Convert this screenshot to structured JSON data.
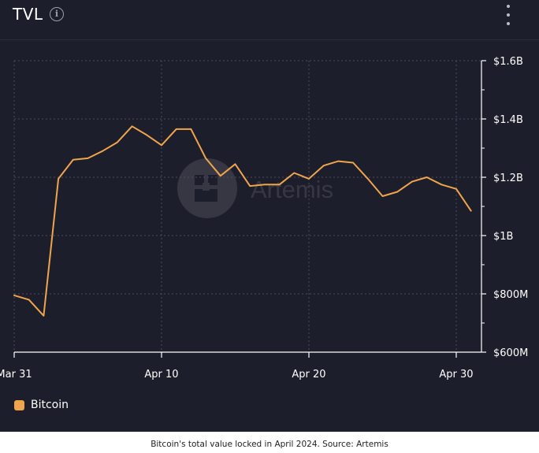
{
  "header": {
    "title": "TVL",
    "info_icon": "info-icon",
    "menu_icon": "vertical-ellipsis-icon"
  },
  "watermark": {
    "text": "Artemis"
  },
  "legend": {
    "label": "Bitcoin"
  },
  "caption": "Bitcoin's total value locked in April 2024. Source: Artemis",
  "colors": {
    "background": "#1d1e2b",
    "series": "#f0a44b",
    "grid": "#4a4c5c",
    "text": "#ffffff"
  },
  "chart_data": {
    "type": "line",
    "title": "TVL",
    "xlabel": "",
    "ylabel": "",
    "x_ticks": [
      "Mar 31",
      "Apr 10",
      "Apr 20",
      "Apr 30"
    ],
    "y_ticks": [
      "$600M",
      "$800M",
      "$1B",
      "$1.2B",
      "$1.4B",
      "$1.6B"
    ],
    "ylim": [
      600,
      1600
    ],
    "y_unit": "millions USD",
    "grid": true,
    "legend_position": "bottom-left",
    "series": [
      {
        "name": "Bitcoin",
        "color": "#f0a44b",
        "x": [
          "Mar 31",
          "Apr 1",
          "Apr 2",
          "Apr 3",
          "Apr 4",
          "Apr 5",
          "Apr 6",
          "Apr 7",
          "Apr 8",
          "Apr 9",
          "Apr 10",
          "Apr 11",
          "Apr 12",
          "Apr 13",
          "Apr 14",
          "Apr 15",
          "Apr 16",
          "Apr 17",
          "Apr 18",
          "Apr 19",
          "Apr 20",
          "Apr 21",
          "Apr 22",
          "Apr 23",
          "Apr 24",
          "Apr 25",
          "Apr 26",
          "Apr 27",
          "Apr 28",
          "Apr 29",
          "Apr 30",
          "May 1"
        ],
        "values": [
          795,
          780,
          725,
          1195,
          1260,
          1265,
          1290,
          1320,
          1375,
          1345,
          1310,
          1365,
          1365,
          1265,
          1205,
          1245,
          1170,
          1175,
          1175,
          1215,
          1195,
          1240,
          1255,
          1250,
          1195,
          1135,
          1150,
          1185,
          1200,
          1175,
          1160,
          1085
        ]
      }
    ]
  }
}
